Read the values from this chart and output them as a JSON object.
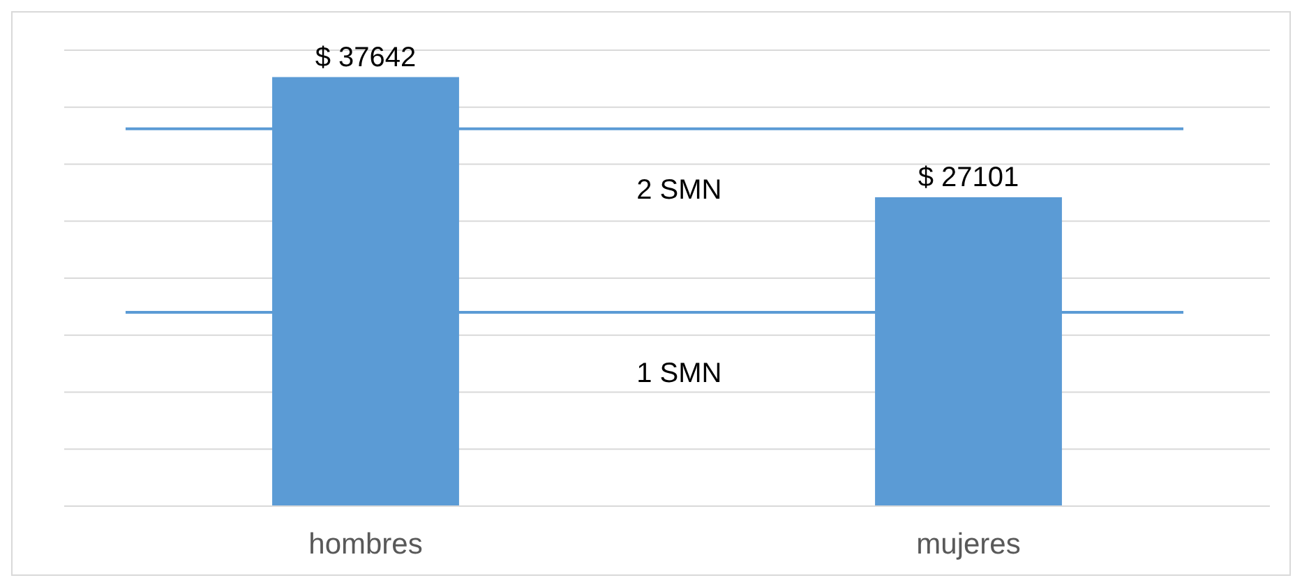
{
  "chart_data": {
    "type": "bar",
    "categories": [
      "hombres",
      "mujeres"
    ],
    "series": [
      {
        "color": "#5b9bd5",
        "values": [
          37642,
          27101
        ],
        "value_labels": [
          "$ 37642",
          "$ 27101"
        ]
      }
    ],
    "ylim": [
      0,
      40000
    ],
    "yticks": [
      {
        "value": 0,
        "label": null
      },
      {
        "value": 5000,
        "label": null
      },
      {
        "value": 10000,
        "label": null
      },
      {
        "value": 15000,
        "label": null
      },
      {
        "value": 20000,
        "label": null
      },
      {
        "value": 25000,
        "label": null
      },
      {
        "value": 30000,
        "label": null
      },
      {
        "value": 35000,
        "label": null
      },
      {
        "value": 40000,
        "label": null
      }
    ],
    "grid": "y",
    "tick_labels": "x",
    "ref_lines": [
      {
        "axis": "y",
        "value": 33100,
        "label": "2 SMN",
        "color": "#5b9bd5"
      },
      {
        "axis": "y",
        "value": 17000,
        "label": "1 SMN",
        "color": "#5b9bd5"
      }
    ]
  }
}
